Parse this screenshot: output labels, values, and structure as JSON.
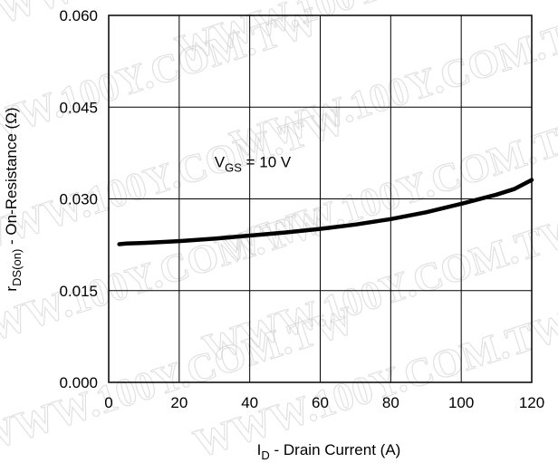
{
  "chart_data": {
    "type": "line",
    "title": "",
    "xlabel_main": "I",
    "xlabel_sub": "D",
    "xlabel_rest": " - Drain Current (A)",
    "ylabel_main": "r",
    "ylabel_sub": "DS(on)",
    "ylabel_rest": " - On-Resistance (Ω)",
    "xlim": [
      0,
      120
    ],
    "ylim": [
      0.0,
      0.06
    ],
    "xticks": [
      0,
      20,
      40,
      60,
      80,
      100,
      120
    ],
    "xtick_labels": [
      "0",
      "20",
      "40",
      "60",
      "80",
      "100",
      "120"
    ],
    "yticks": [
      0.0,
      0.015,
      0.03,
      0.045,
      0.06
    ],
    "ytick_labels": [
      "0.000",
      "0.015",
      "0.030",
      "0.045",
      "0.060"
    ],
    "grid": true,
    "annotation": {
      "main": "V",
      "sub": "GS",
      "rest": " = 10 V",
      "x": 30,
      "y": 0.0352
    },
    "series": [
      {
        "x": [
          3,
          5,
          10,
          20,
          30,
          40,
          50,
          60,
          70,
          80,
          90,
          100,
          110,
          115,
          120
        ],
        "y": [
          0.0226,
          0.0227,
          0.0228,
          0.0231,
          0.0235,
          0.024,
          0.0245,
          0.0251,
          0.0258,
          0.0267,
          0.0278,
          0.0292,
          0.0307,
          0.0316,
          0.0331
        ]
      }
    ]
  },
  "watermark": "WWW.100Y.COM.TW"
}
